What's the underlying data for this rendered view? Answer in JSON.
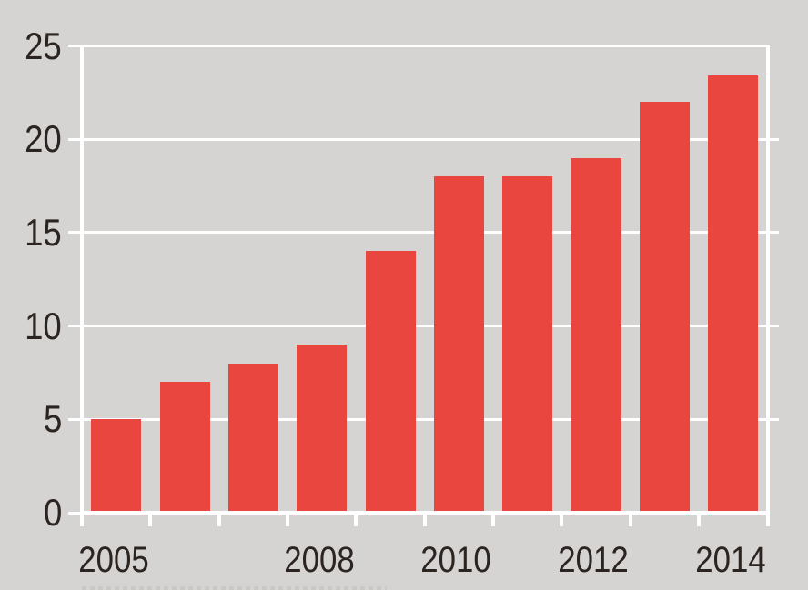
{
  "chart_data": {
    "type": "bar",
    "title": "",
    "xlabel": "",
    "ylabel": "",
    "categories": [
      "2005",
      "2006",
      "2007",
      "2008",
      "2009",
      "2010",
      "2011",
      "2012",
      "2013",
      "2014"
    ],
    "values": [
      5,
      7,
      8,
      9,
      14,
      18,
      18,
      19,
      22,
      23.4
    ],
    "ylim": [
      0,
      25
    ],
    "y_ticks": [
      25,
      20,
      15,
      10,
      5,
      0
    ],
    "x_tick_labels": [
      {
        "label": "2005",
        "slot": 0
      },
      {
        "label": "2008",
        "slot": 3
      },
      {
        "label": "2010",
        "slot": 5
      },
      {
        "label": "2012",
        "slot": 7
      },
      {
        "label": "2014",
        "slot": 9
      }
    ],
    "grid": "horizontal white gridlines with outward tick marks, full white frame (left/right axis lines, top 25-line, bottom baseline), bottom ticks at every category boundary",
    "legend": "none",
    "bar_color": "#e8463e",
    "background_color": "#d5d4d2",
    "gridline_color": "#ffffff",
    "label_color": "#2b2420"
  }
}
